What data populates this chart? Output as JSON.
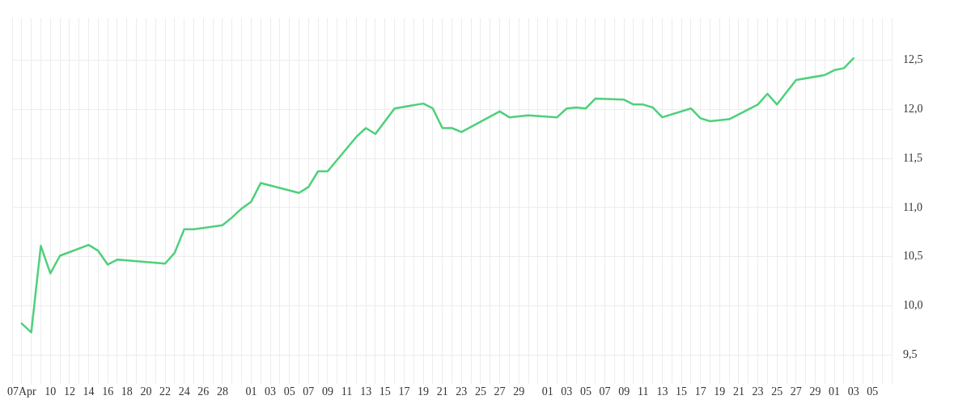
{
  "chart_data": {
    "type": "line",
    "grid": true,
    "legend": false,
    "marker": "none",
    "line_style": "solid",
    "x": [
      "--04-07",
      "--04-08",
      "--04-09",
      "--04-10",
      "--04-11",
      "--04-14",
      "--04-15",
      "--04-16",
      "--04-17",
      "--04-22",
      "--04-23",
      "--04-24",
      "--04-25",
      "--04-28",
      "--04-29",
      "--04-30",
      "--05-01",
      "--05-02",
      "--05-06",
      "--05-07",
      "--05-08",
      "--05-09",
      "--05-12",
      "--05-13",
      "--05-14",
      "--05-16",
      "--05-19",
      "--05-20",
      "--05-21",
      "--05-22",
      "--05-23",
      "--05-27",
      "--05-28",
      "--05-30",
      "--06-02",
      "--06-03",
      "--06-04",
      "--06-05",
      "--06-06",
      "--06-09",
      "--06-10",
      "--06-11",
      "--06-12",
      "--06-13",
      "--06-16",
      "--06-17",
      "--06-18",
      "--06-20",
      "--06-23",
      "--06-24",
      "--06-25",
      "--06-27",
      "--06-30",
      "--07-01",
      "--07-02",
      "--07-03"
    ],
    "series": [
      {
        "color": "#4ed07a",
        "values": [
          9.82,
          9.73,
          10.61,
          10.33,
          10.51,
          10.62,
          10.56,
          10.42,
          10.47,
          10.43,
          10.54,
          10.78,
          10.78,
          10.82,
          10.9,
          10.99,
          11.06,
          11.25,
          11.15,
          11.21,
          11.37,
          11.37,
          11.72,
          11.81,
          11.75,
          12.01,
          12.06,
          12.01,
          11.81,
          11.81,
          11.77,
          11.98,
          11.92,
          11.94,
          11.92,
          12.01,
          12.02,
          12.01,
          12.11,
          12.1,
          12.05,
          12.05,
          12.02,
          11.92,
          12.01,
          11.91,
          11.88,
          11.9,
          12.05,
          12.16,
          12.05,
          12.3,
          12.35,
          12.4,
          12.42,
          12.52
        ]
      }
    ],
    "xlim": [
      "--04-06",
      "--07-07"
    ],
    "xticks": [
      {
        "value": "--04-06",
        "label": null
      },
      {
        "value": "--04-07",
        "label": "07Apr"
      },
      {
        "value": "--04-08",
        "label": null
      },
      {
        "value": "--04-09",
        "label": null
      },
      {
        "value": "--04-10",
        "label": "10"
      },
      {
        "value": "--04-11",
        "label": null
      },
      {
        "value": "--04-12",
        "label": "12"
      },
      {
        "value": "--04-13",
        "label": null
      },
      {
        "value": "--04-14",
        "label": "14"
      },
      {
        "value": "--04-15",
        "label": null
      },
      {
        "value": "--04-16",
        "label": "16"
      },
      {
        "value": "--04-17",
        "label": null
      },
      {
        "value": "--04-18",
        "label": "18"
      },
      {
        "value": "--04-19",
        "label": null
      },
      {
        "value": "--04-20",
        "label": "20"
      },
      {
        "value": "--04-21",
        "label": null
      },
      {
        "value": "--04-22",
        "label": "22"
      },
      {
        "value": "--04-23",
        "label": null
      },
      {
        "value": "--04-24",
        "label": "24"
      },
      {
        "value": "--04-25",
        "label": null
      },
      {
        "value": "--04-26",
        "label": "26"
      },
      {
        "value": "--04-27",
        "label": null
      },
      {
        "value": "--04-28",
        "label": "28"
      },
      {
        "value": "--04-29",
        "label": null
      },
      {
        "value": "--04-30",
        "label": null
      },
      {
        "value": "--05-01",
        "label": "01"
      },
      {
        "value": "--05-02",
        "label": null
      },
      {
        "value": "--05-03",
        "label": "03"
      },
      {
        "value": "--05-04",
        "label": null
      },
      {
        "value": "--05-05",
        "label": "05"
      },
      {
        "value": "--05-06",
        "label": null
      },
      {
        "value": "--05-07",
        "label": "07"
      },
      {
        "value": "--05-08",
        "label": null
      },
      {
        "value": "--05-09",
        "label": "09"
      },
      {
        "value": "--05-10",
        "label": null
      },
      {
        "value": "--05-11",
        "label": "11"
      },
      {
        "value": "--05-12",
        "label": null
      },
      {
        "value": "--05-13",
        "label": "13"
      },
      {
        "value": "--05-14",
        "label": null
      },
      {
        "value": "--05-15",
        "label": "15"
      },
      {
        "value": "--05-16",
        "label": null
      },
      {
        "value": "--05-17",
        "label": "17"
      },
      {
        "value": "--05-18",
        "label": null
      },
      {
        "value": "--05-19",
        "label": "19"
      },
      {
        "value": "--05-20",
        "label": null
      },
      {
        "value": "--05-21",
        "label": "21"
      },
      {
        "value": "--05-22",
        "label": null
      },
      {
        "value": "--05-23",
        "label": "23"
      },
      {
        "value": "--05-24",
        "label": null
      },
      {
        "value": "--05-25",
        "label": "25"
      },
      {
        "value": "--05-26",
        "label": null
      },
      {
        "value": "--05-27",
        "label": "27"
      },
      {
        "value": "--05-28",
        "label": null
      },
      {
        "value": "--05-29",
        "label": "29"
      },
      {
        "value": "--05-30",
        "label": null
      },
      {
        "value": "--05-31",
        "label": null
      },
      {
        "value": "--06-01",
        "label": "01"
      },
      {
        "value": "--06-02",
        "label": null
      },
      {
        "value": "--06-03",
        "label": "03"
      },
      {
        "value": "--06-04",
        "label": null
      },
      {
        "value": "--06-05",
        "label": "05"
      },
      {
        "value": "--06-06",
        "label": null
      },
      {
        "value": "--06-07",
        "label": "07"
      },
      {
        "value": "--06-08",
        "label": null
      },
      {
        "value": "--06-09",
        "label": "09"
      },
      {
        "value": "--06-10",
        "label": null
      },
      {
        "value": "--06-11",
        "label": "11"
      },
      {
        "value": "--06-12",
        "label": null
      },
      {
        "value": "--06-13",
        "label": "13"
      },
      {
        "value": "--06-14",
        "label": null
      },
      {
        "value": "--06-15",
        "label": "15"
      },
      {
        "value": "--06-16",
        "label": null
      },
      {
        "value": "--06-17",
        "label": "17"
      },
      {
        "value": "--06-18",
        "label": null
      },
      {
        "value": "--06-19",
        "label": "19"
      },
      {
        "value": "--06-20",
        "label": null
      },
      {
        "value": "--06-21",
        "label": "21"
      },
      {
        "value": "--06-22",
        "label": null
      },
      {
        "value": "--06-23",
        "label": "23"
      },
      {
        "value": "--06-24",
        "label": null
      },
      {
        "value": "--06-25",
        "label": "25"
      },
      {
        "value": "--06-26",
        "label": null
      },
      {
        "value": "--06-27",
        "label": "27"
      },
      {
        "value": "--06-28",
        "label": null
      },
      {
        "value": "--06-29",
        "label": "29"
      },
      {
        "value": "--06-30",
        "label": null
      },
      {
        "value": "--07-01",
        "label": "01"
      },
      {
        "value": "--07-02",
        "label": null
      },
      {
        "value": "--07-03",
        "label": "03"
      },
      {
        "value": "--07-04",
        "label": null
      },
      {
        "value": "--07-05",
        "label": "05"
      },
      {
        "value": "--07-06",
        "label": null
      },
      {
        "value": "--07-07",
        "label": null
      }
    ],
    "ylim": [
      9.27,
      12.93
    ],
    "yticks": [
      {
        "value": 9.5,
        "label": "9,5"
      },
      {
        "value": 10,
        "label": "10,0"
      },
      {
        "value": 10.5,
        "label": "10,5"
      },
      {
        "value": 11,
        "label": "11,0"
      },
      {
        "value": 11.5,
        "label": "11,5"
      },
      {
        "value": 12,
        "label": "12,0"
      },
      {
        "value": 12.5,
        "label": "12,5"
      }
    ]
  }
}
